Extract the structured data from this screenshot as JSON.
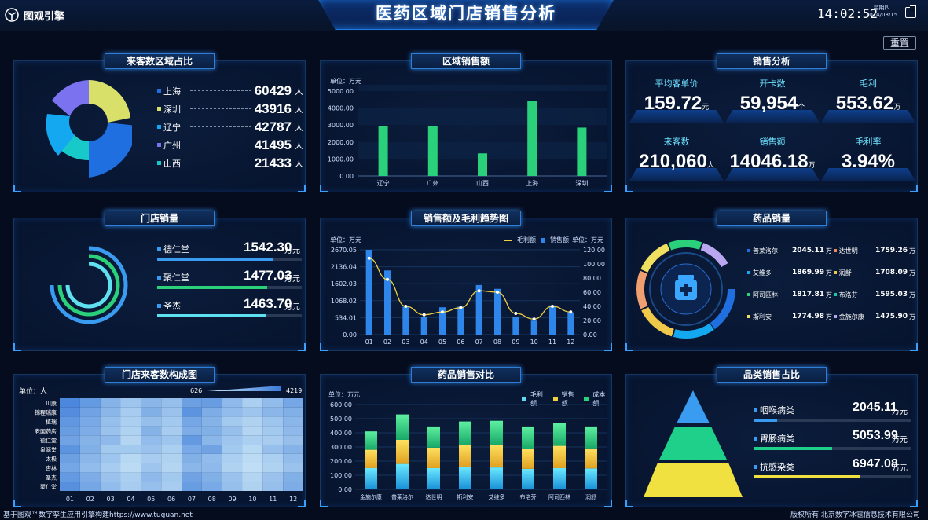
{
  "header": {
    "app_name": "图观引擎",
    "title": "医药区域门店销售分析",
    "time": "14:02:52",
    "weekday": "星期四",
    "date": "2024/08/15",
    "reset_label": "重置"
  },
  "panel_visitor_region": {
    "title": "来客数区域占比",
    "items": [
      {
        "name": "上海",
        "value": "60429",
        "unit": "人",
        "color": "#1f6fe0"
      },
      {
        "name": "深圳",
        "value": "43916",
        "unit": "人",
        "color": "#d9e06a"
      },
      {
        "name": "辽宁",
        "value": "42787",
        "unit": "人",
        "color": "#14a8f0"
      },
      {
        "name": "广州",
        "value": "41495",
        "unit": "人",
        "color": "#7b72f0"
      },
      {
        "name": "山西",
        "value": "21433",
        "unit": "人",
        "color": "#18c9c9"
      }
    ]
  },
  "panel_region_sales": {
    "title": "区域销售额",
    "unit": "单位：万元",
    "chart_data": {
      "type": "bar",
      "categories": [
        "辽宁",
        "广州",
        "山西",
        "上海",
        "深圳"
      ],
      "values": [
        2950,
        2950,
        1330,
        4400,
        2850
      ],
      "ylim": [
        0,
        5000
      ],
      "yticks": [
        "0.00",
        "1000.00",
        "2000.00",
        "3000.00",
        "4000.00",
        "5000.00"
      ]
    }
  },
  "panel_sales_analysis": {
    "title": "销售分析",
    "stats": [
      {
        "label": "平均客单价",
        "value": "159.72",
        "unit": "元"
      },
      {
        "label": "开卡数",
        "value": "59,954",
        "unit": "个"
      },
      {
        "label": "毛利",
        "value": "553.62",
        "unit": "万"
      },
      {
        "label": "来客数",
        "value": "210,060",
        "unit": "人"
      },
      {
        "label": "销售额",
        "value": "14046.18",
        "unit": "万"
      },
      {
        "label": "毛利率",
        "value": "3.94%",
        "unit": ""
      }
    ]
  },
  "panel_store_sales": {
    "title": "门店销量",
    "items": [
      {
        "name": "德仁堂",
        "value": "1542.30",
        "unit": "万元",
        "fill": 0.8,
        "color": "#3a9cf0"
      },
      {
        "name": "聚仁堂",
        "value": "1477.03",
        "unit": "万元",
        "fill": 0.76,
        "color": "#2ad07a"
      },
      {
        "name": "圣杰",
        "value": "1463.70",
        "unit": "万元",
        "fill": 0.75,
        "color": "#5fe0f0"
      }
    ]
  },
  "panel_trend": {
    "title": "销售额及毛利趋势图",
    "unit_left": "单位：万元",
    "unit_right": "单位：万元",
    "legend": {
      "line": "毛利额",
      "bar": "销售额"
    },
    "chart_data": {
      "type": "bar",
      "categories": [
        "01",
        "02",
        "03",
        "04",
        "05",
        "06",
        "07",
        "08",
        "09",
        "10",
        "11",
        "12"
      ],
      "series": [
        {
          "name": "销售额",
          "axis": "left",
          "values": [
            2670,
            2020,
            880,
            560,
            860,
            880,
            1560,
            1440,
            560,
            440,
            920,
            700
          ]
        },
        {
          "name": "毛利额",
          "axis": "right",
          "type": "line",
          "values": [
            108,
            78,
            40,
            28,
            32,
            38,
            62,
            60,
            30,
            22,
            40,
            32
          ]
        }
      ],
      "ylim_left": [
        0,
        2670
      ],
      "ylim_right": [
        0,
        120
      ],
      "yticks_left": [
        "0.00",
        "534.01",
        "1068.02",
        "1602.03",
        "2136.04",
        "2670.05"
      ],
      "yticks_right": [
        "0.00",
        "20.00",
        "40.00",
        "60.00",
        "80.00",
        "100.00",
        "120.00"
      ]
    }
  },
  "panel_drug_sales": {
    "title": "药品销量",
    "items": [
      {
        "name": "普莱洛尔",
        "value": "2045.11",
        "unit": "万",
        "color": "#1f6fe0"
      },
      {
        "name": "达世明",
        "value": "1759.26",
        "unit": "万",
        "color": "#f08a5a"
      },
      {
        "name": "艾维多",
        "value": "1869.99",
        "unit": "万",
        "color": "#14a8f0"
      },
      {
        "name": "润舒",
        "value": "1708.09",
        "unit": "万",
        "color": "#f0c84a"
      },
      {
        "name": "阿司匹林",
        "value": "1817.81",
        "unit": "万",
        "color": "#2ad07a"
      },
      {
        "name": "布洛芬",
        "value": "1595.03",
        "unit": "万",
        "color": "#18c9b0"
      },
      {
        "name": "斯利安",
        "value": "1774.98",
        "unit": "万",
        "color": "#f0e060"
      },
      {
        "name": "金施尔康",
        "value": "1475.90",
        "unit": "万",
        "color": "#b9a8f0"
      }
    ]
  },
  "panel_heatmap": {
    "title": "门店来客数构成图",
    "unit": "单位：人",
    "range_min": "626",
    "range_max": "4219",
    "chart_data": {
      "type": "heatmap",
      "x": [
        "01",
        "02",
        "03",
        "04",
        "05",
        "06",
        "07",
        "08",
        "09",
        "10",
        "11",
        "12"
      ],
      "y": [
        "川康",
        "锦程瑞康",
        "植瑞",
        "老国药房",
        "德仁堂",
        "泉源堂",
        "太极",
        "杏林",
        "圣杰",
        "聚仁堂"
      ],
      "values": [
        [
          3800,
          3200,
          2400,
          1800,
          2300,
          2000,
          3000,
          3100,
          2200,
          1500,
          2100,
          2800
        ],
        [
          3600,
          2900,
          2300,
          1600,
          2500,
          1900,
          3400,
          2600,
          2100,
          1800,
          2300,
          2500
        ],
        [
          3300,
          2700,
          2000,
          1500,
          2000,
          1700,
          2800,
          2400,
          1700,
          1400,
          1800,
          2300
        ],
        [
          3100,
          2600,
          1900,
          1400,
          2400,
          1600,
          2600,
          2500,
          2000,
          1300,
          1700,
          2200
        ],
        [
          2900,
          2400,
          2200,
          1300,
          2100,
          1800,
          3200,
          2300,
          1800,
          1500,
          1600,
          2000
        ],
        [
          3400,
          2500,
          1700,
          1700,
          1900,
          1500,
          2700,
          2900,
          1700,
          1200,
          2000,
          2400
        ],
        [
          3000,
          2300,
          1800,
          1200,
          1600,
          1400,
          2500,
          2100,
          1500,
          1100,
          1500,
          2100
        ],
        [
          2800,
          2100,
          1600,
          1100,
          1800,
          1300,
          2300,
          2200,
          1400,
          1000,
          1400,
          1900
        ],
        [
          3200,
          2600,
          1900,
          1500,
          2200,
          1700,
          2900,
          2500,
          1900,
          1300,
          1900,
          2500
        ],
        [
          3500,
          2800,
          2100,
          1600,
          2000,
          1600,
          3100,
          2700,
          2000,
          1400,
          2000,
          2600
        ]
      ]
    }
  },
  "panel_drug_compare": {
    "title": "药品销售对比",
    "unit": "单位：万元",
    "legend": [
      "毛利额",
      "销售额",
      "成本额"
    ],
    "chart_data": {
      "type": "bar",
      "categories": [
        "金施尔康",
        "普莱洛尔",
        "达世明",
        "斯利安",
        "艾维多",
        "布洛芬",
        "阿司匹林",
        "润舒"
      ],
      "series": [
        {
          "name": "毛利额",
          "values": [
            150,
            180,
            150,
            160,
            155,
            145,
            150,
            148
          ]
        },
        {
          "name": "销售额",
          "values": [
            130,
            170,
            145,
            155,
            160,
            140,
            158,
            142
          ]
        },
        {
          "name": "成本额",
          "values": [
            130,
            180,
            150,
            165,
            170,
            160,
            162,
            155
          ]
        }
      ],
      "ylim": [
        0,
        600
      ],
      "yticks": [
        "0.00",
        "100.00",
        "200.00",
        "300.00",
        "400.00",
        "500.00",
        "600.00"
      ]
    }
  },
  "panel_category": {
    "title": "品类销售占比",
    "items": [
      {
        "name": "咽喉病类",
        "value": "2045.11",
        "unit": "万元",
        "fill": 0.15,
        "color": "#3a9cf0"
      },
      {
        "name": "胃肠病类",
        "value": "5053.99",
        "unit": "万元",
        "fill": 0.5,
        "color": "#1ed08a"
      },
      {
        "name": "抗感染类",
        "value": "6947.08",
        "unit": "万元",
        "fill": 0.68,
        "color": "#f0e040"
      }
    ]
  },
  "footer": {
    "left": "基于图观™数字孪生应用引擎构建https://www.tuguan.net",
    "right": "版权所有 北京数字冰雹信息技术有限公司"
  }
}
